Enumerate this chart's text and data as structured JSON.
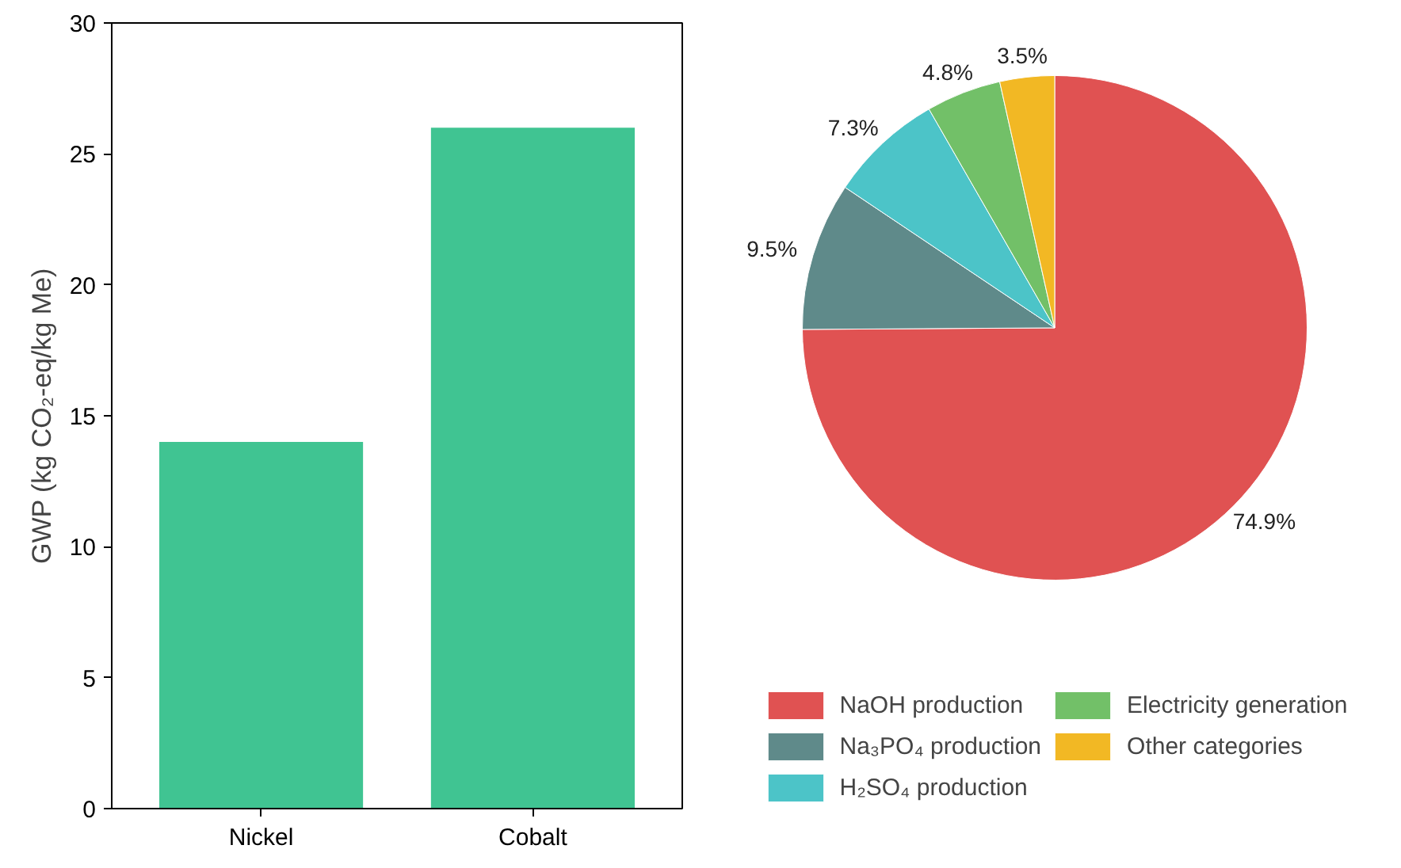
{
  "chart_data": [
    {
      "type": "bar",
      "ylabel": "GWP (kg CO₂-eq/kg Me)",
      "categories": [
        "Nickel",
        "Cobalt"
      ],
      "values": [
        14,
        26
      ],
      "color": "#40c492",
      "ylim": [
        0,
        30
      ],
      "yticks": [
        0,
        5,
        10,
        15,
        20,
        25,
        30
      ]
    },
    {
      "type": "pie",
      "categories": [
        "NaOH production",
        "Na₃PO₄ production",
        "H₂SO₄ production",
        "Electricity generation",
        "Other categories"
      ],
      "values": [
        74.9,
        9.5,
        7.3,
        4.8,
        3.5
      ],
      "colors": [
        "#e05252",
        "#5f8a8a",
        "#4cc4c8",
        "#72c068",
        "#f2b824"
      ],
      "value_labels": [
        "74.9%",
        "9.5%",
        "7.3%",
        "4.8%",
        "3.5%"
      ],
      "legend": "bottom"
    }
  ]
}
